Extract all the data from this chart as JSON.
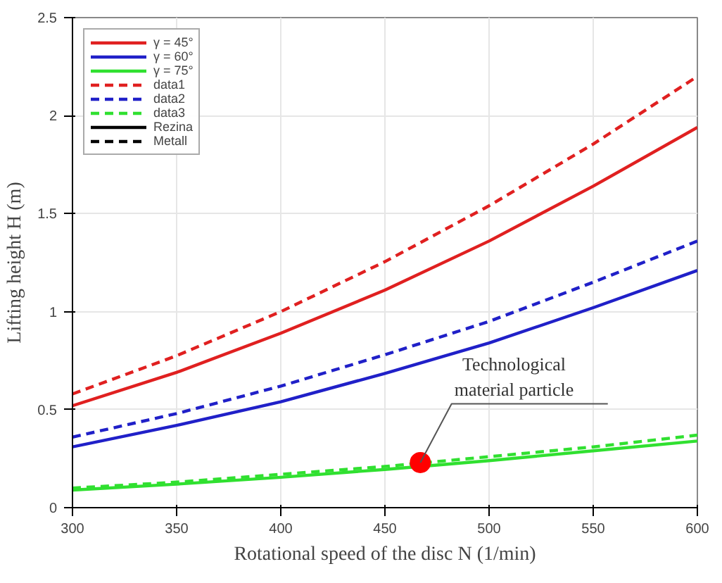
{
  "chart_data": {
    "type": "line",
    "xlabel": "Rotational speed of the disc N (1/min)",
    "ylabel": "Lifting height H (m)",
    "x": [
      300,
      350,
      400,
      450,
      500,
      550,
      600
    ],
    "xlim": [
      300,
      600
    ],
    "xticks": [
      300,
      350,
      400,
      450,
      500,
      550,
      600
    ],
    "ylim": [
      0,
      2.5
    ],
    "yticks": [
      0,
      0.5,
      1,
      1.5,
      2,
      2.5
    ],
    "grid": true,
    "legend": "top left",
    "series": [
      {
        "name": "γ = 45°",
        "color": "#e02020",
        "line_style": "solid",
        "values": [
          0.52,
          0.69,
          0.89,
          1.11,
          1.36,
          1.64,
          1.94
        ]
      },
      {
        "name": "γ = 60°",
        "color": "#2020c8",
        "line_style": "solid",
        "values": [
          0.31,
          0.42,
          0.54,
          0.685,
          0.84,
          1.02,
          1.21
        ]
      },
      {
        "name": "γ = 75°",
        "color": "#30e030",
        "line_style": "solid",
        "values": [
          0.09,
          0.12,
          0.155,
          0.195,
          0.24,
          0.29,
          0.34
        ]
      },
      {
        "name": "data1",
        "color": "#e02020",
        "line_style": "dashed",
        "values": [
          0.58,
          0.775,
          1.0,
          1.255,
          1.54,
          1.855,
          2.2
        ]
      },
      {
        "name": "data2",
        "color": "#2020c8",
        "line_style": "dashed",
        "values": [
          0.36,
          0.48,
          0.62,
          0.78,
          0.95,
          1.15,
          1.36
        ]
      },
      {
        "name": "data3",
        "color": "#30e030",
        "line_style": "dashed",
        "values": [
          0.1,
          0.13,
          0.17,
          0.21,
          0.26,
          0.31,
          0.37
        ]
      },
      {
        "name": "Rezina",
        "color": "#000000",
        "line_style": "solid",
        "values": [
          null,
          null,
          null,
          null,
          null,
          null,
          null
        ]
      },
      {
        "name": "Metall",
        "color": "#000000",
        "line_style": "dashed",
        "values": [
          null,
          null,
          null,
          null,
          null,
          null,
          null
        ]
      },
      {
        "type": "scatter",
        "color": "#ff0000",
        "marker": "circle",
        "x": [
          467
        ],
        "values": [
          0.23
        ]
      }
    ],
    "annotations": [
      {
        "text": "Technological\nmaterial particle",
        "x": 467,
        "y": 0.23
      }
    ]
  }
}
